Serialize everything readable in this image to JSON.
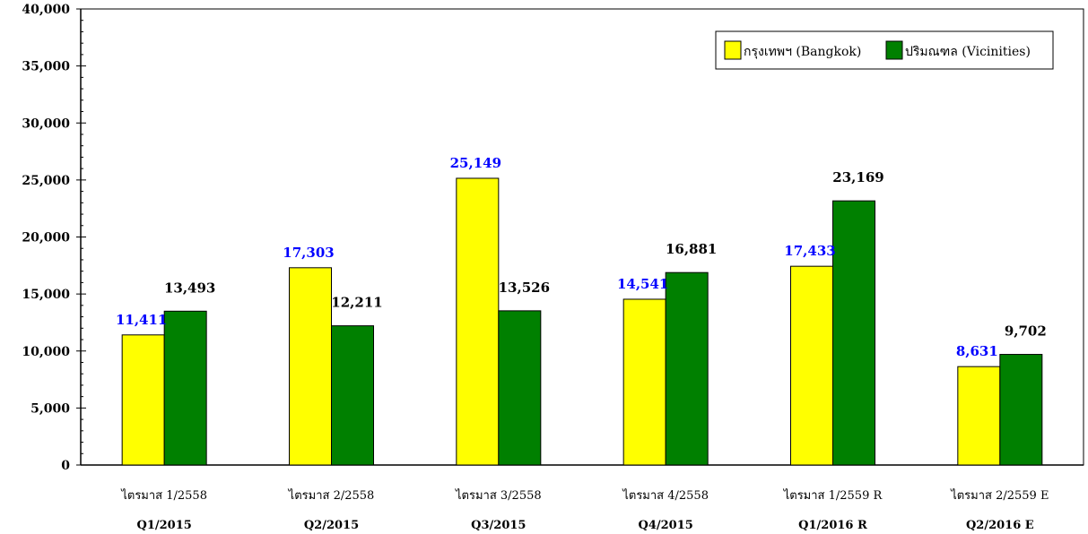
{
  "chart_data": {
    "type": "bar",
    "categories": [
      "ไตรมาส 1/2558",
      "ไตรมาส 2/2558",
      "ไตรมาส 3/2558",
      "ไตรมาส 4/2558",
      "ไตรมาส 1/2559 R",
      "ไตรมาส 2/2559 E"
    ],
    "categories_secondary": [
      "Q1/2015",
      "Q2/2015",
      "Q3/2015",
      "Q4/2015",
      "Q1/2016 R",
      "Q2/2016 E"
    ],
    "series": [
      {
        "name": "กรุงเทพฯ (Bangkok)",
        "color": "#ffff00",
        "label_color": "#0000ff",
        "values": [
          11411,
          17303,
          25149,
          14541,
          17433,
          8631
        ],
        "labels": [
          "11,411",
          "17,303",
          "25,149",
          "14,541",
          "17,433",
          "8,631"
        ]
      },
      {
        "name": "ปริมณฑล (Vicinities)",
        "color": "#008000",
        "label_color": "#000000",
        "values": [
          13493,
          12211,
          13526,
          16881,
          23169,
          9702
        ],
        "labels": [
          "13,493",
          "12,211",
          "13,526",
          "16,881",
          "23,169",
          "9,702"
        ]
      }
    ],
    "ylim": [
      0,
      40000
    ],
    "yticks": [
      0,
      5000,
      10000,
      15000,
      20000,
      25000,
      30000,
      35000,
      40000
    ],
    "ytick_labels": [
      "0",
      "5,000",
      "10,000",
      "15,000",
      "20,000",
      "25,000",
      "30,000",
      "35,000",
      "40,000"
    ],
    "grid": false,
    "legend_position": "top-right",
    "title": "",
    "xlabel": "",
    "ylabel": ""
  }
}
